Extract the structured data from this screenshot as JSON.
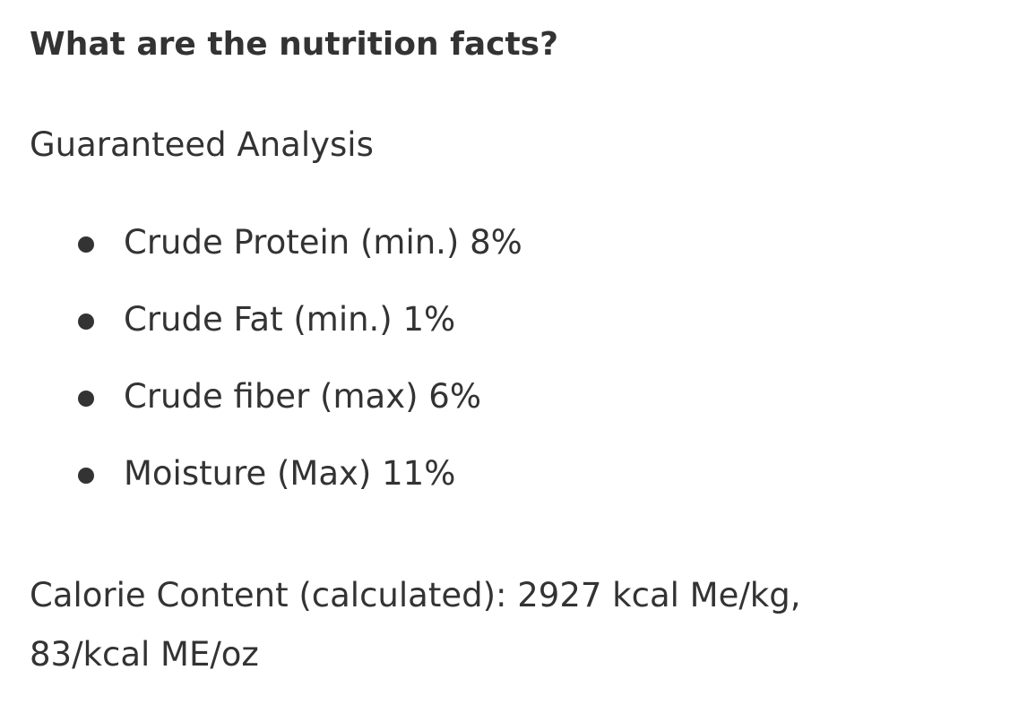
{
  "heading": "What are the nutrition facts?",
  "subheading": "Guaranteed Analysis",
  "facts": [
    "Crude Protein (min.) 8%",
    "Crude Fat (min.) 1%",
    "Crude fiber (max) 6%",
    "Moisture (Max) 11%"
  ],
  "calorie_line1": "Calorie Content (calculated): 2927 kcal Me/kg,",
  "calorie_line2": "83/kcal ME/oz",
  "colors": {
    "text": "#333333",
    "background": "#ffffff"
  }
}
